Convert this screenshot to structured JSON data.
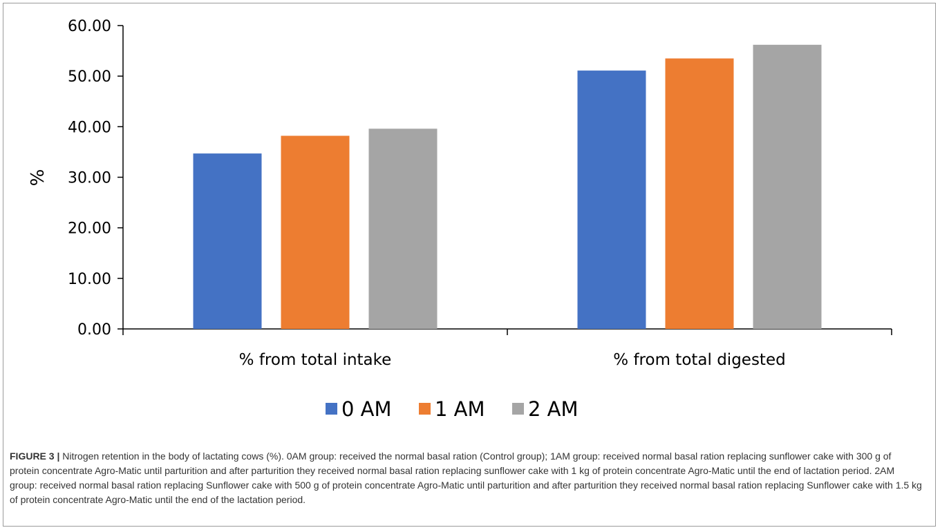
{
  "chart_data": {
    "type": "bar",
    "categories": [
      "% from total intake",
      "% from total digested"
    ],
    "series": [
      {
        "name": "0 AM",
        "values": [
          34.7,
          51.1
        ],
        "color": "#4472C4"
      },
      {
        "name": "1 AM",
        "values": [
          38.2,
          53.5
        ],
        "color": "#ED7D31"
      },
      {
        "name": "2 AM",
        "values": [
          39.6,
          56.2
        ],
        "color": "#A5A5A5"
      }
    ],
    "ylabel": "%",
    "xlabel": "",
    "ylim": [
      0,
      60
    ],
    "yticks": [
      "0.00",
      "10.00",
      "20.00",
      "30.00",
      "40.00",
      "50.00",
      "60.00"
    ],
    "grid": false,
    "legend_position": "bottom"
  },
  "caption": {
    "label": "FIGURE 3 |",
    "text": "Nitrogen retention in the body of lactating cows (%). 0AM group: received the normal basal ration (Control group); 1AM group: received normal basal ration replacing sunflower cake with 300 g of protein concentrate Agro-Matic until parturition and after parturition they received normal basal ration replacing sunflower cake with 1 kg of protein concentrate Agro-Matic until the end of lactation period. 2AM group: received normal basal ration replacing Sunflower cake with 500 g of protein concentrate Agro-Matic until parturition and after parturition they received normal basal ration replacing Sunflower cake with 1.5 kg of protein concentrate Agro-Matic until the end of the lactation period."
  }
}
